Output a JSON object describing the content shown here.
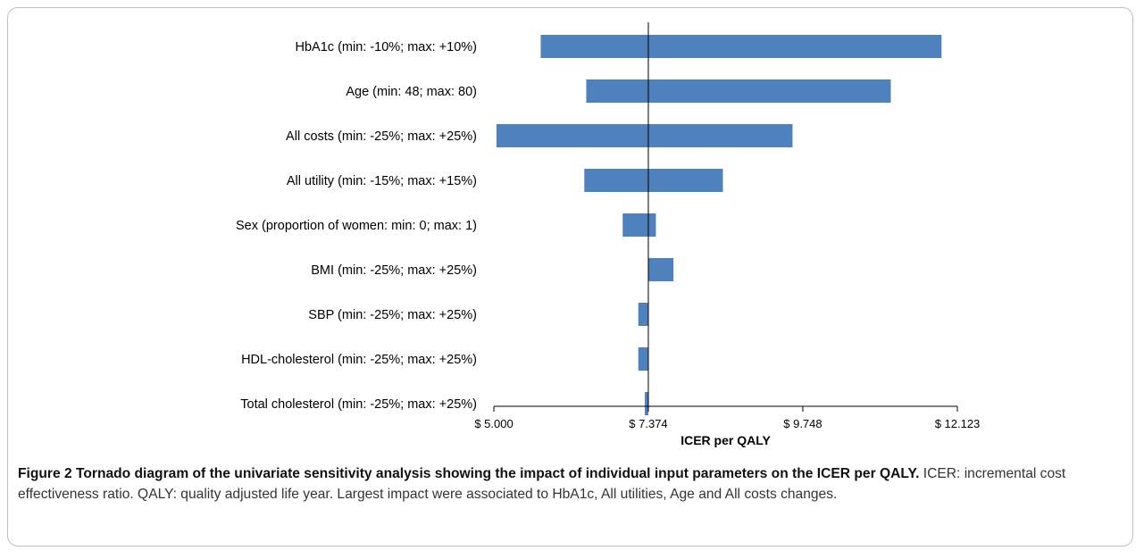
{
  "chart_data": {
    "type": "tornado",
    "title": "",
    "xlabel": "ICER per QALY",
    "ylabel": "",
    "baseline": 7374,
    "xlim": [
      5000,
      12123
    ],
    "xticks": [
      5000,
      7374,
      9748,
      12123
    ],
    "xtick_labels": [
      "$ 5.000",
      "$ 7.374",
      "$ 9.748",
      "$ 12.123"
    ],
    "categories": [
      "HbA1c (min: -10%; max: +10%)",
      "Age (min: 48; max: 80)",
      "All costs (min: -25%; max: +25%)",
      "All utility (min: -15%; max: +15%)",
      "Sex (proportion of women: min: 0; max: 1)",
      "BMI (min: -25%; max: +25%)",
      "SBP (min: -25%; max: +25%)",
      "HDL-cholesterol (min: -25%; max: +25%)",
      "Total cholesterol (min: -25%; max: +25%)"
    ],
    "ranges": [
      [
        5720,
        11880
      ],
      [
        6420,
        11100
      ],
      [
        5040,
        9590
      ],
      [
        6390,
        8520
      ],
      [
        6980,
        7490
      ],
      [
        7374,
        7760
      ],
      [
        7220,
        7374
      ],
      [
        7220,
        7374
      ],
      [
        7320,
        7374
      ]
    ],
    "bar_color": "#4f81bd",
    "grid": false,
    "legend": "none"
  },
  "caption": {
    "figure_label": "Figure 2 Tornado diagram of the univariate sensitivity analysis showing the impact of individual input parameters on the ICER per QALY.",
    "text": " ICER: incremental cost effectiveness ratio. QALY: quality adjusted life year. Largest impact were associated to HbA1c, All utilities, Age and All costs changes."
  }
}
